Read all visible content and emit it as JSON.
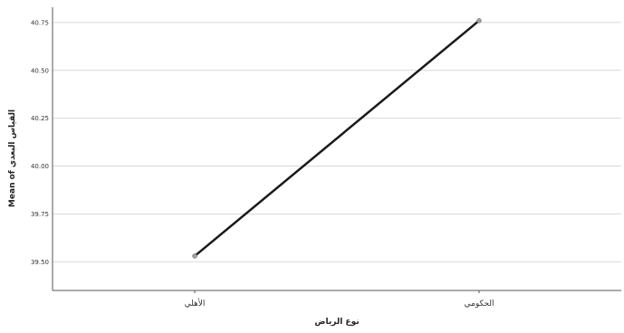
{
  "chart_data": {
    "type": "line",
    "title": "",
    "xlabel": "نوع الرياض",
    "ylabel": "Mean of القياس البعدي",
    "categories": [
      "الأهلي",
      "الحكومي"
    ],
    "series": [
      {
        "values": [
          39.53,
          40.76
        ]
      }
    ],
    "y_ticks": [
      39.5,
      39.75,
      40.0,
      40.25,
      40.5,
      40.75
    ],
    "y_tick_labels": [
      "39.50",
      "39.75",
      "40.00",
      "40.25",
      "40.50",
      "40.75"
    ],
    "ylim": [
      39.35,
      40.83
    ],
    "grid": true,
    "legend": "none",
    "colors": {
      "line": "#1a1a1a",
      "marker": "#9e9e9e",
      "grid": "#d9d9d9",
      "axis": "#555555"
    }
  }
}
